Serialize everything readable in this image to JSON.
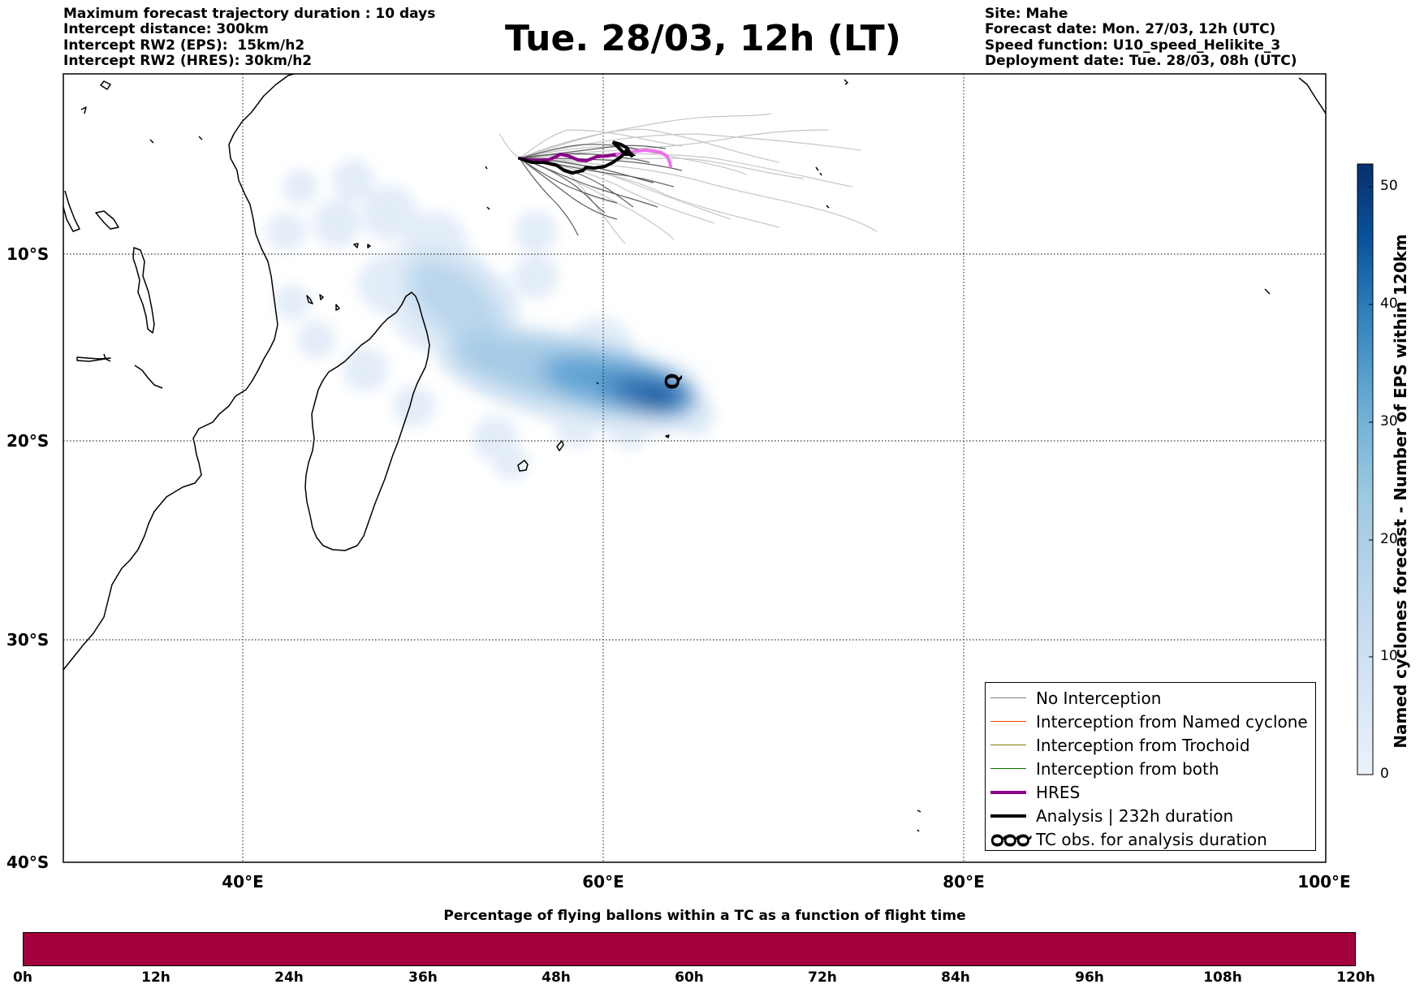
{
  "header": {
    "left_lines": [
      "Maximum forecast trajectory duration : 10 days",
      "Intercept distance: 300km",
      "Intercept RW2 (EPS):  15km/h2",
      "Intercept RW2 (HRES): 30km/h2"
    ],
    "title": "Tue. 28/03, 12h (LT)",
    "right_lines": [
      "Site: Mahe",
      "Forecast date: Mon. 27/03, 12h (UTC)",
      "Speed function: U10_speed_Helikite_3",
      "Deployment date: Tue. 28/03, 08h (UTC)"
    ]
  },
  "map": {
    "lon_range": [
      30,
      100
    ],
    "lat_range": [
      0,
      -40
    ],
    "lat_labels": [
      "10°S",
      "20°S",
      "30°S",
      "40°S"
    ],
    "lat_values": [
      -10,
      -20,
      -30,
      -40
    ],
    "lon_labels": [
      "40°E",
      "60°E",
      "80°E",
      "100°E"
    ],
    "lon_values": [
      40,
      60,
      80,
      100
    ]
  },
  "legend": {
    "items": [
      {
        "label": "No Interception",
        "color": "#808080",
        "style": "thin"
      },
      {
        "label": "Interception from Named cyclone",
        "color": "#ff4500",
        "style": "thin"
      },
      {
        "label": "Interception from Trochoid",
        "color": "#808000",
        "style": "thin"
      },
      {
        "label": "Interception from both",
        "color": "#008000",
        "style": "thin"
      },
      {
        "label": "HRES",
        "color": "#8b008b",
        "style": "thick"
      },
      {
        "label": "Analysis | 232h duration",
        "color": "#000000",
        "style": "thick"
      },
      {
        "label": "TC obs. for analysis duration",
        "color": "#000000",
        "style": "symbol",
        "symbol": "℺℺℺"
      }
    ]
  },
  "colorbar": {
    "label": "Named cyclones forecast - Number of EPS within 120km",
    "ticks": [
      0,
      10,
      20,
      30,
      40,
      50
    ],
    "min": 0,
    "max": 52,
    "color_low": "#e2eef9",
    "color_high": "#08306b"
  },
  "time_bar": {
    "title": "Percentage of flying ballons within a TC as a function of flight time",
    "ticks": [
      "0h",
      "12h",
      "24h",
      "36h",
      "48h",
      "60h",
      "72h",
      "84h",
      "96h",
      "108h",
      "120h"
    ],
    "color": "#a3003e"
  },
  "colors": {
    "hres_early": "#8b008b",
    "hres_late": "#ee6fee",
    "analysis": "#000000",
    "eps_dark": "#595959",
    "eps_light": "#c0c0c0"
  }
}
